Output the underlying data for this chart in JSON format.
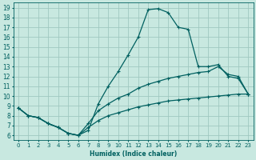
{
  "xlabel": "Humidex (Indice chaleur)",
  "bg_color": "#c8e8e0",
  "grid_color": "#a0c8c0",
  "line_color": "#006060",
  "xlim": [
    -0.5,
    23.5
  ],
  "ylim": [
    5.5,
    19.5
  ],
  "xticks": [
    0,
    1,
    2,
    3,
    4,
    5,
    6,
    7,
    8,
    9,
    10,
    11,
    12,
    13,
    14,
    15,
    16,
    17,
    18,
    19,
    20,
    21,
    22,
    23
  ],
  "yticks": [
    6,
    7,
    8,
    9,
    10,
    11,
    12,
    13,
    14,
    15,
    16,
    17,
    18,
    19
  ],
  "line1_x": [
    0,
    1,
    2,
    3,
    4,
    5,
    6,
    7,
    8,
    9,
    10,
    11,
    12,
    13,
    14,
    15,
    16,
    17,
    18,
    19,
    20,
    21,
    22,
    23
  ],
  "line1_y": [
    8.8,
    8.0,
    7.8,
    7.2,
    6.8,
    6.2,
    6.0,
    6.5,
    9.2,
    11.0,
    12.5,
    14.2,
    16.0,
    18.8,
    18.9,
    18.5,
    17.0,
    16.8,
    13.0,
    13.0,
    13.2,
    12.0,
    11.8,
    10.2
  ],
  "line2_x": [
    0,
    1,
    2,
    3,
    4,
    5,
    6,
    7,
    8,
    9,
    10,
    11,
    12,
    13,
    14,
    15,
    16,
    17,
    18,
    19,
    20,
    21,
    22,
    23
  ],
  "line2_y": [
    8.8,
    8.0,
    7.8,
    7.2,
    6.8,
    6.2,
    6.0,
    7.2,
    8.5,
    9.2,
    9.8,
    10.2,
    10.8,
    11.2,
    11.5,
    11.8,
    12.0,
    12.2,
    12.4,
    12.5,
    13.0,
    12.2,
    12.0,
    10.2
  ],
  "line3_x": [
    0,
    1,
    2,
    3,
    4,
    5,
    6,
    7,
    8,
    9,
    10,
    11,
    12,
    13,
    14,
    15,
    16,
    17,
    18,
    19,
    20,
    21,
    22,
    23
  ],
  "line3_y": [
    8.8,
    8.0,
    7.8,
    7.2,
    6.8,
    6.2,
    6.0,
    6.8,
    7.5,
    8.0,
    8.3,
    8.6,
    8.9,
    9.1,
    9.3,
    9.5,
    9.6,
    9.7,
    9.8,
    9.9,
    10.0,
    10.1,
    10.2,
    10.2
  ]
}
